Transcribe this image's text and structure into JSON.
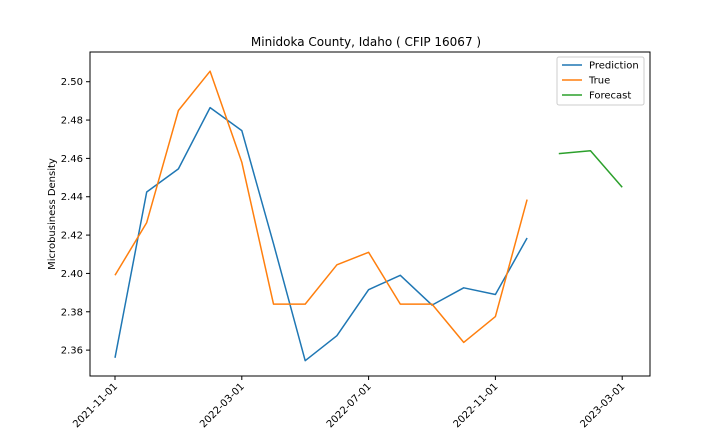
{
  "chart_data": {
    "type": "line",
    "title": "Minidoka County, Idaho ( CFIP 16067 )",
    "xlabel": "",
    "ylabel": "Microbusiness Density",
    "x_ticks": [
      "2021-11-01",
      "2022-03-01",
      "2022-07-01",
      "2022-11-01",
      "2023-03-01"
    ],
    "y_ticks": [
      "2.36",
      "2.38",
      "2.40",
      "2.42",
      "2.44",
      "2.46",
      "2.48",
      "2.50"
    ],
    "ylim": [
      2.3465,
      2.5155
    ],
    "legend_position": "top-right",
    "grid": false,
    "series": [
      {
        "name": "Prediction",
        "color": "#1f77b4",
        "x": [
          "2021-11-01",
          "2021-12-01",
          "2022-01-01",
          "2022-02-01",
          "2022-03-01",
          "2022-04-01",
          "2022-05-01",
          "2022-06-01",
          "2022-07-01",
          "2022-08-01",
          "2022-09-01",
          "2022-10-01",
          "2022-11-01",
          "2022-12-01"
        ],
        "values": [
          2.356,
          2.4425,
          2.4545,
          2.4865,
          2.4745,
          2.4155,
          2.3545,
          2.3675,
          2.3915,
          2.399,
          2.3835,
          2.3925,
          2.389,
          2.4185
        ]
      },
      {
        "name": "True",
        "color": "#ff7f0e",
        "x": [
          "2021-11-01",
          "2021-12-01",
          "2022-01-01",
          "2022-02-01",
          "2022-03-01",
          "2022-04-01",
          "2022-05-01",
          "2022-06-01",
          "2022-07-01",
          "2022-08-01",
          "2022-09-01",
          "2022-10-01",
          "2022-11-01",
          "2022-12-01"
        ],
        "values": [
          2.399,
          2.4265,
          2.485,
          2.5055,
          2.458,
          2.384,
          2.384,
          2.4045,
          2.411,
          2.384,
          2.384,
          2.364,
          2.3775,
          2.4385
        ]
      },
      {
        "name": "Forecast",
        "color": "#2ca02c",
        "x": [
          "2023-01-01",
          "2023-02-01",
          "2023-03-01"
        ],
        "values": [
          2.4625,
          2.464,
          2.445
        ]
      }
    ]
  }
}
